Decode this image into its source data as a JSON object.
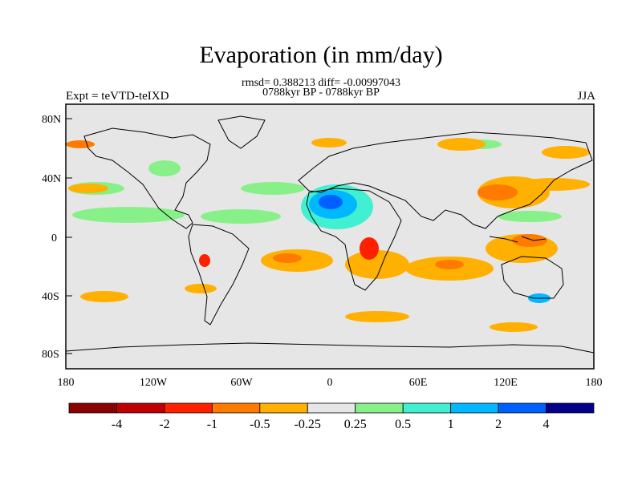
{
  "title": "Evaporation (in mm/day)",
  "stats_line": "rmsd= 0.388213 diff= -0.00997043",
  "period_line": "0788kyr BP - 0788kyr BP",
  "left_label": "Expt = teVTD-teIXD",
  "right_label": "JJA",
  "y_ticks": [
    "80N",
    "40N",
    "0",
    "40S",
    "80S"
  ],
  "x_ticks": [
    "180",
    "120W",
    "60W",
    "0",
    "60E",
    "120E",
    "180"
  ],
  "colorbar": {
    "colors": [
      "#8b0000",
      "#c00000",
      "#ff2000",
      "#ff7a00",
      "#ffb000",
      "#e6e6e6",
      "#88f088",
      "#40f0d0",
      "#00b8ff",
      "#0060ff",
      "#00008b"
    ],
    "labels": [
      "-4",
      "-2",
      "-1",
      "-0.5",
      "-0.25",
      "0.25",
      "0.5",
      "1",
      "2",
      "4"
    ]
  },
  "background_color": "#e6e6e6"
}
